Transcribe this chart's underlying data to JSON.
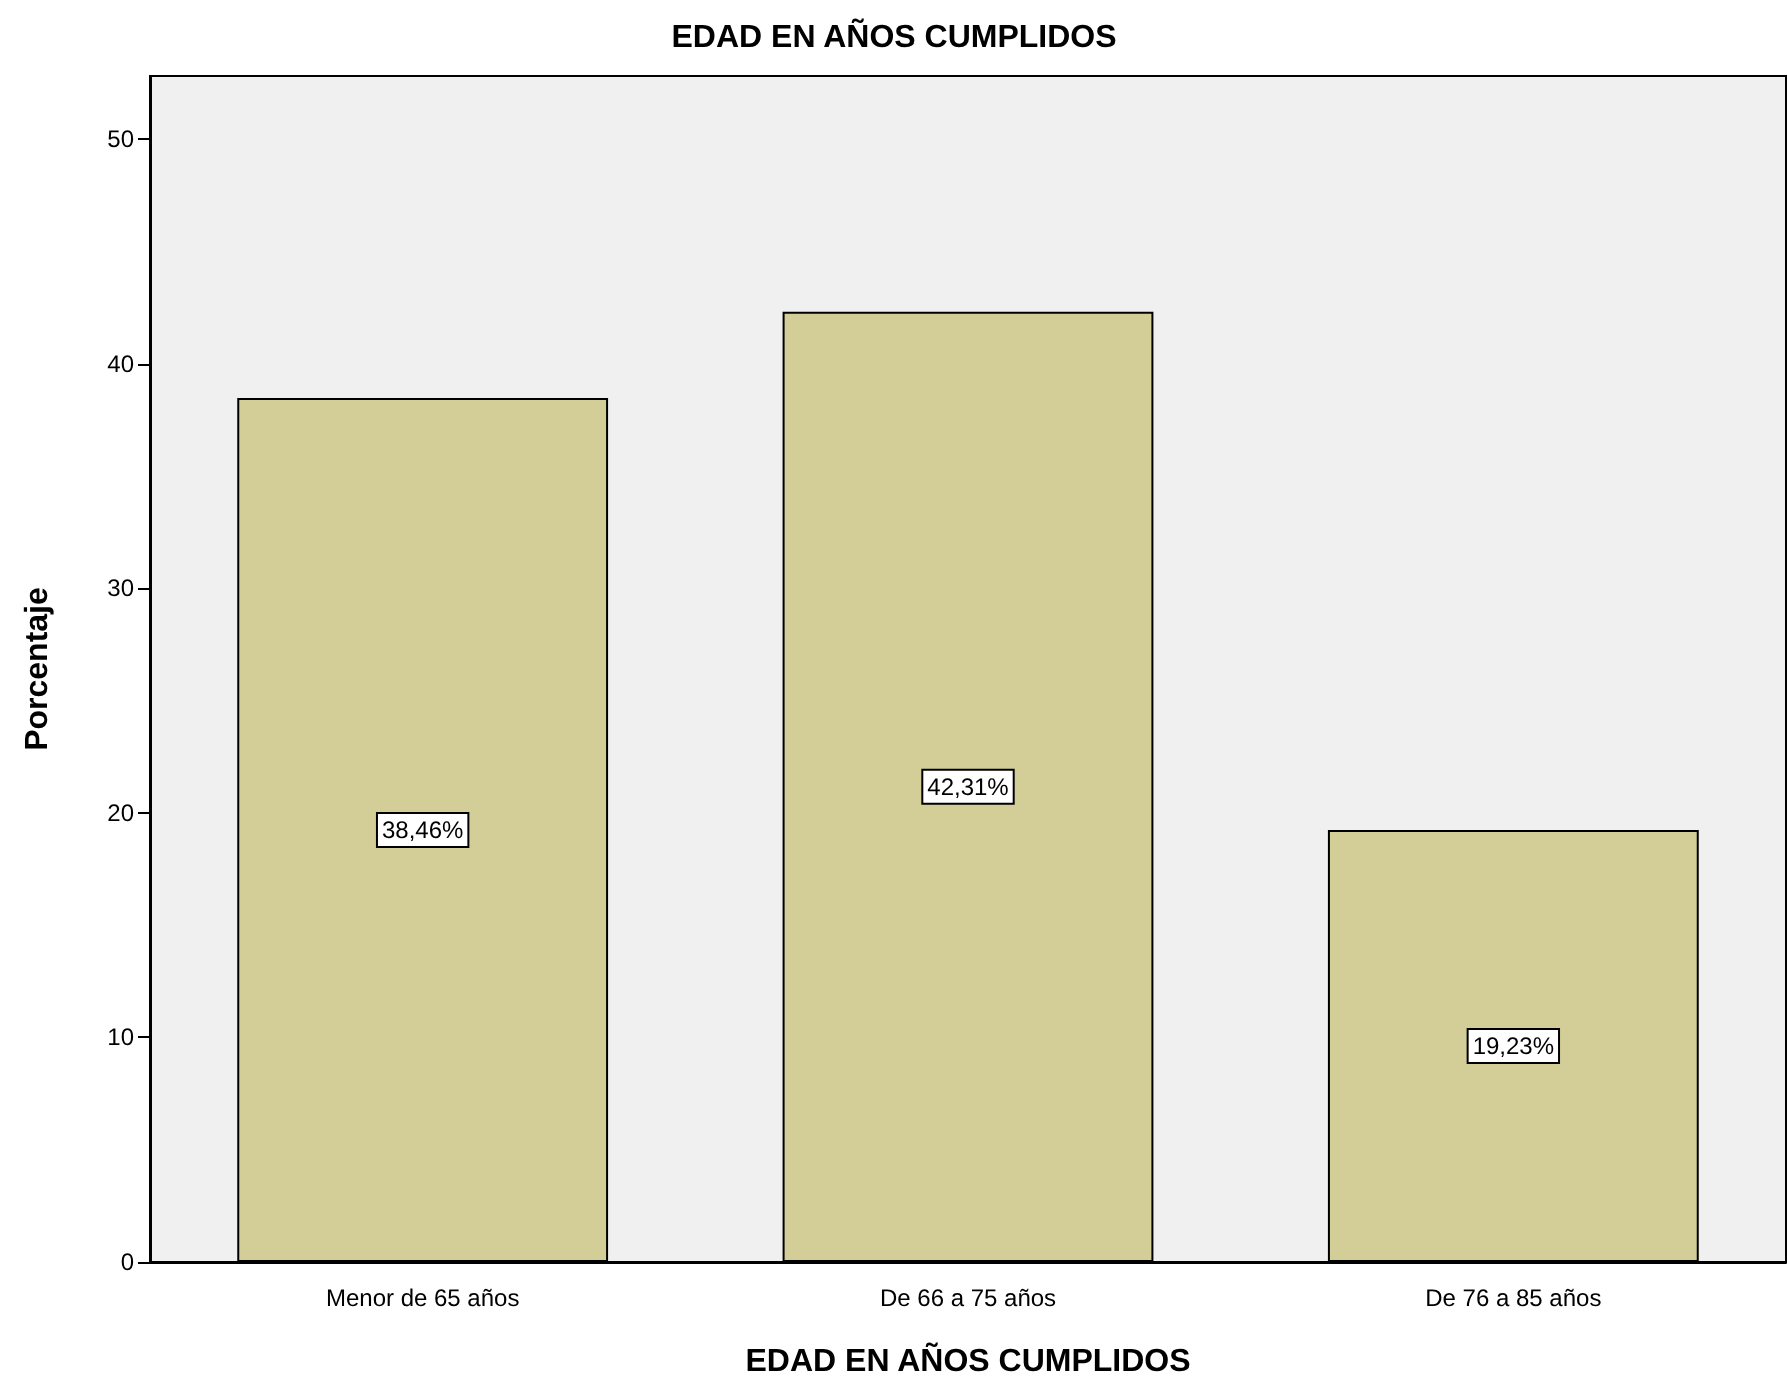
{
  "chart_data": {
    "type": "bar",
    "title": "EDAD EN AÑOS CUMPLIDOS",
    "xlabel": "EDAD EN AÑOS CUMPLIDOS",
    "ylabel": "Porcentaje",
    "categories": [
      "Menor de 65 años",
      "De 66 a 75 años",
      "De 76 a 85 años"
    ],
    "values": [
      38.46,
      42.31,
      19.23
    ],
    "value_labels": [
      "38,46%",
      "42,31%",
      "19,23%"
    ],
    "color": "#d3ce97",
    "ylim": [
      0,
      52.8
    ],
    "yticks": [
      0,
      10,
      20,
      30,
      40,
      50
    ],
    "grid": false
  }
}
